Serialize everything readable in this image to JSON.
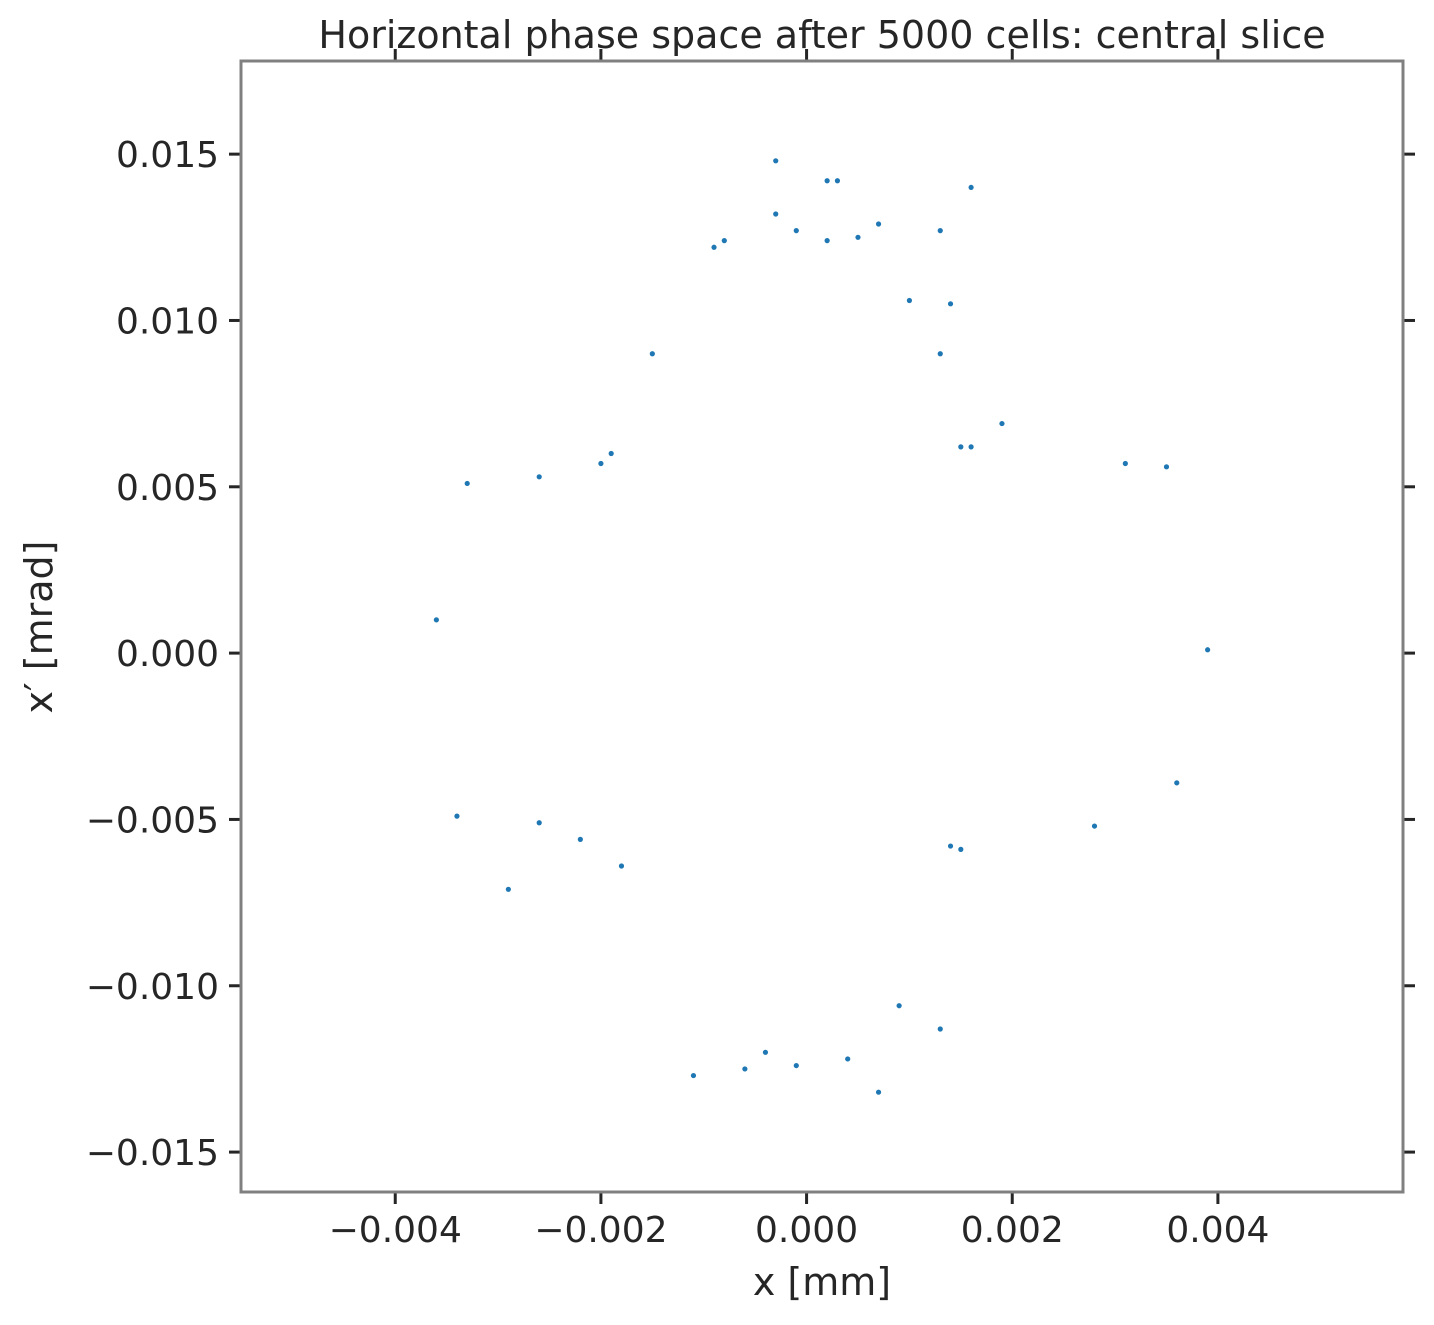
{
  "chart_data": {
    "type": "scatter",
    "title": "Horizontal phase space after 5000 cells: central slice",
    "xlabel": "x [mm]",
    "ylabel": "x′ [mrad]",
    "xlim": [
      -0.0055,
      0.0058
    ],
    "ylim": [
      -0.0162,
      0.0178
    ],
    "xticks": [
      -0.004,
      -0.002,
      0.0,
      0.002,
      0.004
    ],
    "xtick_labels": [
      "−0.004",
      "−0.002",
      "0.000",
      "0.002",
      "0.004"
    ],
    "yticks": [
      -0.015,
      -0.01,
      -0.005,
      0.0,
      0.005,
      0.01,
      0.015
    ],
    "ytick_labels": [
      "−0.015",
      "−0.010",
      "−0.005",
      "0.000",
      "0.005",
      "0.010",
      "0.015"
    ],
    "grid": false,
    "marker_color": "#1f77b4",
    "frame_color": "#808080",
    "series": [
      {
        "points": [
          [
            -0.0003,
            0.0148
          ],
          [
            0.0002,
            0.0142
          ],
          [
            0.0003,
            0.0142
          ],
          [
            0.0016,
            0.014
          ],
          [
            -0.0003,
            0.0132
          ],
          [
            0.0007,
            0.0129
          ],
          [
            -0.0001,
            0.0127
          ],
          [
            0.0013,
            0.0127
          ],
          [
            -0.0009,
            0.0122
          ],
          [
            0.0002,
            0.0124
          ],
          [
            0.0005,
            0.0125
          ],
          [
            -0.0008,
            0.0124
          ],
          [
            0.001,
            0.0106
          ],
          [
            0.0014,
            0.0105
          ],
          [
            -0.0015,
            0.009
          ],
          [
            0.0013,
            0.009
          ],
          [
            0.0019,
            0.0069
          ],
          [
            0.0015,
            0.0062
          ],
          [
            0.0016,
            0.0062
          ],
          [
            0.0031,
            0.0057
          ],
          [
            0.0035,
            0.0056
          ],
          [
            -0.002,
            0.0057
          ],
          [
            -0.0019,
            0.006
          ],
          [
            -0.0026,
            0.0053
          ],
          [
            -0.0033,
            0.0051
          ],
          [
            -0.0036,
            0.001
          ],
          [
            0.0039,
            0.0001
          ],
          [
            0.0036,
            -0.0039
          ],
          [
            -0.0034,
            -0.0049
          ],
          [
            -0.0029,
            -0.0071
          ],
          [
            -0.0018,
            -0.0064
          ],
          [
            -0.0022,
            -0.0056
          ],
          [
            -0.0026,
            -0.0051
          ],
          [
            0.0015,
            -0.0059
          ],
          [
            0.0014,
            -0.0058
          ],
          [
            0.0028,
            -0.0052
          ],
          [
            0.0013,
            -0.0113
          ],
          [
            -0.0011,
            -0.0127
          ],
          [
            0.0007,
            -0.0132
          ],
          [
            -0.0006,
            -0.0125
          ],
          [
            -0.0001,
            -0.0124
          ],
          [
            0.0004,
            -0.0122
          ],
          [
            -0.0004,
            -0.012
          ],
          [
            0.0009,
            -0.0106
          ]
        ]
      }
    ]
  }
}
